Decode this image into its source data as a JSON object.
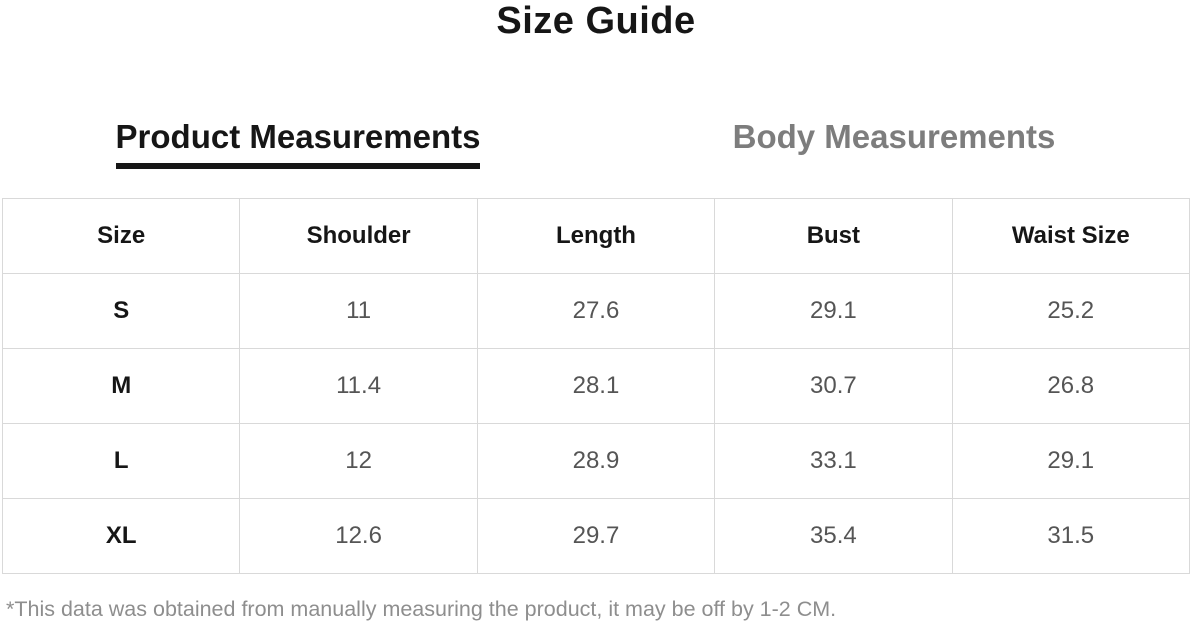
{
  "title": "Size Guide",
  "tabs": {
    "product": {
      "label": "Product Measurements",
      "active": true
    },
    "body": {
      "label": "Body Measurements",
      "active": false
    }
  },
  "table": {
    "columns": [
      "Size",
      "Shoulder",
      "Length",
      "Bust",
      "Waist Size"
    ],
    "rows": [
      [
        "S",
        "11",
        "27.6",
        "29.1",
        "25.2"
      ],
      [
        "M",
        "11.4",
        "28.1",
        "30.7",
        "26.8"
      ],
      [
        "L",
        "12",
        "28.9",
        "33.1",
        "29.1"
      ],
      [
        "XL",
        "12.6",
        "29.7",
        "35.4",
        "31.5"
      ]
    ]
  },
  "footnote": "*This data was obtained from manually measuring the product, it may be off by 1-2 CM.",
  "colors": {
    "ink": "#161616",
    "tab_inactive": "#7d7d7d",
    "cell_text": "#555555",
    "border": "#d9d9d9",
    "footnote": "#8e8e8e",
    "background": "#ffffff"
  }
}
